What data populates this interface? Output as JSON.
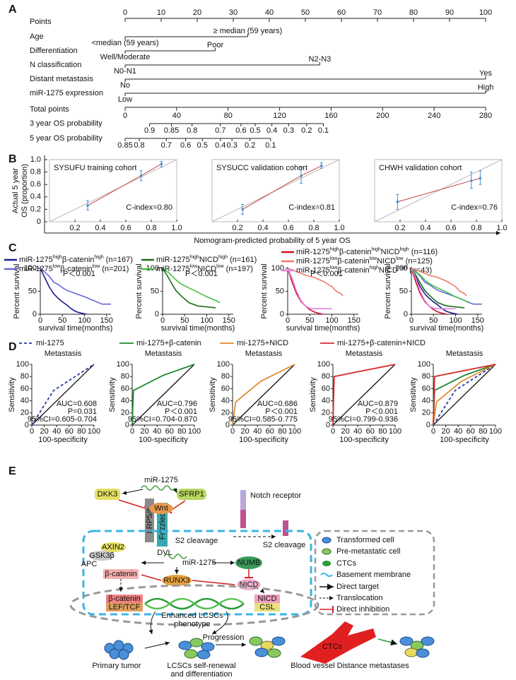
{
  "panel_labels": [
    "A",
    "B",
    "C",
    "D",
    "E"
  ],
  "nomogram": {
    "points": {
      "label": "Points",
      "lim": [
        0,
        100
      ],
      "ticks": [
        0,
        10,
        20,
        30,
        40,
        50,
        60,
        70,
        80,
        90,
        100
      ]
    },
    "variables": [
      {
        "name": "Age",
        "levels": [
          {
            "label": "<median (59 years)",
            "points": 0
          },
          {
            "label": "≥ median (59 years)",
            "points": 34
          }
        ]
      },
      {
        "name": "Differentiation",
        "levels": [
          {
            "label": "Well/Moderate",
            "points": 0
          },
          {
            "label": "Poor",
            "points": 25
          }
        ]
      },
      {
        "name": "N classification",
        "levels": [
          {
            "label": "N0-N1",
            "points": 0
          },
          {
            "label": "N2-N3",
            "points": 54
          }
        ]
      },
      {
        "name": "Distant metastasis",
        "levels": [
          {
            "label": "No",
            "points": 0
          },
          {
            "label": "Yes",
            "points": 100
          }
        ]
      },
      {
        "name": "miR-1275  expression",
        "levels": [
          {
            "label": "Low",
            "points": 0
          },
          {
            "label": "High",
            "points": 100
          }
        ]
      }
    ],
    "total_points": {
      "label": "Total points",
      "lim": [
        0,
        280
      ],
      "ticks": [
        0,
        40,
        80,
        120,
        160,
        200,
        240,
        280
      ]
    },
    "probabilities": [
      {
        "label": "3 year OS probability",
        "values": [
          0.9,
          0.85,
          0.8,
          0.7,
          0.6,
          0.5,
          0.4,
          0.3,
          0.2,
          0.1
        ],
        "total_points": [
          19,
          36,
          52,
          74,
          90,
          101,
          114,
          127,
          141,
          154
        ]
      },
      {
        "label": "5 year OS probability",
        "values": [
          0.85,
          0.8,
          0.7,
          0.6,
          0.5,
          0.4,
          0.3,
          0.2,
          0.1
        ],
        "total_points": [
          0,
          11,
          32,
          47,
          60,
          74,
          83,
          97,
          113
        ]
      }
    ]
  },
  "calibration": {
    "y_label": [
      "Actual 5 year",
      "OS (proportion)"
    ],
    "x_label": "Nomogram-predicted probability of 5 year OS",
    "xlim": [
      0,
      1
    ],
    "xticks": [
      0.2,
      0.4,
      0.6,
      0.8,
      {
        "value": 1,
        "label": "1.0"
      }
    ],
    "ylim": [
      0,
      1
    ],
    "yticks": [
      0,
      0.2,
      0.4,
      0.6,
      0.8,
      {
        "value": 1,
        "label": "1.0"
      }
    ],
    "line_color": "#c84040",
    "bar_color": "#4a90d0",
    "plots": [
      {
        "title": "SYSUFU training cohort",
        "c_index": "C-index=0.80",
        "x": [
          0.3,
          0.72,
          0.88
        ],
        "y": [
          0.26,
          0.74,
          0.93
        ],
        "lower": [
          0.19,
          0.66,
          0.88
        ],
        "upper": [
          0.34,
          0.82,
          0.97
        ]
      },
      {
        "title": "SYSUCC validation cohort",
        "c_index": "C-index=0.81",
        "x": [
          0.24,
          0.7,
          0.86
        ],
        "y": [
          0.2,
          0.74,
          0.9
        ],
        "lower": [
          0.12,
          0.62,
          0.86
        ],
        "upper": [
          0.28,
          0.88,
          0.95
        ]
      },
      {
        "title": "CHWH validation cohort",
        "c_index": "C-index=0.76",
        "x": [
          0.18,
          0.76,
          0.83
        ],
        "y": [
          0.32,
          0.66,
          0.7
        ],
        "lower": [
          0.2,
          0.54,
          0.6
        ],
        "upper": [
          0.44,
          0.8,
          0.82
        ]
      }
    ]
  },
  "survival": {
    "y_label": "Percent survival",
    "x_label": "survival time(months)",
    "xlim": [
      0,
      160
    ],
    "xticks": [
      0,
      50,
      100,
      150
    ],
    "ylim": [
      0,
      100
    ],
    "yticks": [
      0,
      50,
      100
    ],
    "plots": [
      {
        "p_value": "P＜0.001",
        "series": [
          {
            "name": [
              "miR-1275",
              "high",
              "β-catenin",
              "high",
              " (n=167)"
            ],
            "color": "#1c1c8c",
            "x": [
              0,
              10,
              20,
              30,
              40,
              50,
              60,
              70,
              80,
              90,
              100,
              105
            ],
            "values": [
              100,
              80,
              60,
              45,
              35,
              27,
              20,
              12,
              6,
              3,
              1,
              0
            ]
          },
          {
            "name": [
              "miR-1275",
              "low",
              "β-catenin",
              "low",
              " (n=201)"
            ],
            "color": "#6868d8",
            "x": [
              0,
              10,
              20,
              30,
              40,
              50,
              60,
              80,
              100,
              120,
              140,
              160
            ],
            "values": [
              100,
              92,
              83,
              70,
              65,
              58,
              52,
              45,
              38,
              30,
              22,
              22
            ]
          }
        ]
      },
      {
        "p_value": "P＜0.001",
        "series": [
          {
            "name": [
              "miR-1275",
              "high",
              "NICD",
              "high",
              " (n=161)"
            ],
            "color": "#1a6e1a",
            "x": [
              0,
              10,
              20,
              30,
              40,
              50,
              60,
              80,
              100,
              120
            ],
            "values": [
              100,
              85,
              68,
              52,
              42,
              33,
              25,
              18,
              16,
              14
            ]
          },
          {
            "name": [
              "miR-1275",
              "low",
              "NICD",
              "low",
              " (n=197)"
            ],
            "color": "#44c044",
            "x": [
              0,
              10,
              20,
              30,
              40,
              60,
              80,
              100,
              120,
              130
            ],
            "values": [
              100,
              93,
              85,
              75,
              67,
              57,
              48,
              38,
              30,
              25
            ]
          }
        ]
      },
      {
        "p_value": "P＜0.001",
        "series": [
          {
            "name": [
              "miR-1275",
              "high",
              "β-catenin",
              "high",
              "NICD",
              "high",
              " (n=116)"
            ],
            "color": "#d0102a",
            "x": [
              0,
              10,
              20,
              30,
              40,
              50,
              60,
              70,
              80
            ],
            "values": [
              100,
              70,
              45,
              28,
              18,
              10,
              5,
              2,
              0
            ]
          },
          {
            "name": [
              "miR-1275",
              "low",
              "β-catenin",
              "low",
              "NICD",
              "low",
              " (n=125)"
            ],
            "color": "#f07868",
            "x": [
              0,
              10,
              20,
              40,
              60,
              80,
              100,
              110,
              120,
              125
            ],
            "values": [
              100,
              97,
              93,
              85,
              80,
              72,
              60,
              50,
              45,
              40
            ]
          },
          {
            "name": [
              "miR-1275",
              "low",
              "β-catenin",
              "high",
              "NICD",
              "high",
              " (n=43)"
            ],
            "color": "#e480e4",
            "x": [
              0,
              10,
              20,
              30,
              40,
              50,
              60,
              80,
              100
            ],
            "values": [
              100,
              78,
              50,
              30,
              18,
              13,
              12,
              12,
              12
            ]
          }
        ]
      }
    ]
  },
  "roc": {
    "y_label": "Sensitivity",
    "x_label": "100-specificity",
    "lim": [
      0,
      100
    ],
    "ticks": [
      0,
      20,
      40,
      60,
      80,
      100
    ],
    "plots": [
      {
        "title": "Metastasis",
        "stats": [
          "AUC=0.608",
          "P=0.031",
          "95%CI=0.605-0.704"
        ],
        "series": {
          "name": "mi-1275",
          "color": "#2838a8",
          "line_style": "dashed",
          "x": [
            0,
            35,
            100
          ],
          "values": [
            0,
            57,
            100
          ]
        }
      },
      {
        "title": "Metastasis",
        "stats": [
          "AUC=0.796",
          "P＜0.001",
          "95%CI=0.704-0.870"
        ],
        "series": {
          "name": "mi-1275+β-catenin",
          "color": "#1e8a30",
          "line_style": "solid",
          "x": [
            0,
            2,
            50,
            100
          ],
          "values": [
            0,
            57,
            82,
            100
          ]
        }
      },
      {
        "title": "Metastasis",
        "stats": [
          "AUC=0.686",
          "P＜0.001",
          "95%CI=0.585-0.775"
        ],
        "series": {
          "name": "mi-1275+NICD",
          "color": "#e08a30",
          "line_style": "solid",
          "x": [
            0,
            5,
            45,
            100
          ],
          "values": [
            0,
            38,
            72,
            100
          ]
        }
      },
      {
        "title": "Metastasis",
        "stats": [
          "AUC=0.879",
          "P＜0.001",
          "95%CI=0.799-0.936"
        ],
        "series": {
          "name": "mi-1275+β-catenin+NICD",
          "color": "#d82828",
          "line_style": "solid",
          "x": [
            0,
            2,
            100
          ],
          "values": [
            0,
            80,
            100
          ]
        }
      }
    ],
    "combined": {
      "title": "Metastasis"
    }
  },
  "diagram": {
    "mir_top": "miR-1275",
    "dkk3": "DKK3",
    "sfrp1": "SFRP1",
    "wnt": "Wnt",
    "lrp": "LRP5/6",
    "frizzled": "Frizzled",
    "dvl": "DVL",
    "notch": "Notch receptor",
    "s2_left": "S2 cleavage",
    "s2_right": "S2 cleavage",
    "axin2": "AXIN2",
    "gsk3b": "GSK3β",
    "apc": "APC",
    "bcat_cyto": "β-catenin",
    "mir_mid": "miR-1275",
    "numb": "NUMB",
    "nicd_cyto": "NICD",
    "runx3": "RUNX3",
    "bcat_nuc": "β-catenin",
    "leftcf": "LEF/TCF",
    "nicd_nuc": "NICD",
    "csl": "CSL",
    "phenotype": [
      "Enhanced LCSCs",
      "phenotype"
    ],
    "progression": "Progression",
    "primary": "Primary tumor",
    "self_renewal": [
      "LCSCs self-renewal",
      "and differentiation"
    ],
    "ctcs": "CTCs",
    "metastases": "Blood vessel Distance metastases",
    "legend": [
      "Transformed cell",
      "Pre-metastatic cell",
      "CTCs",
      "Basement membrane",
      "Direct target",
      "Translocation",
      "Direct inhibition"
    ]
  }
}
